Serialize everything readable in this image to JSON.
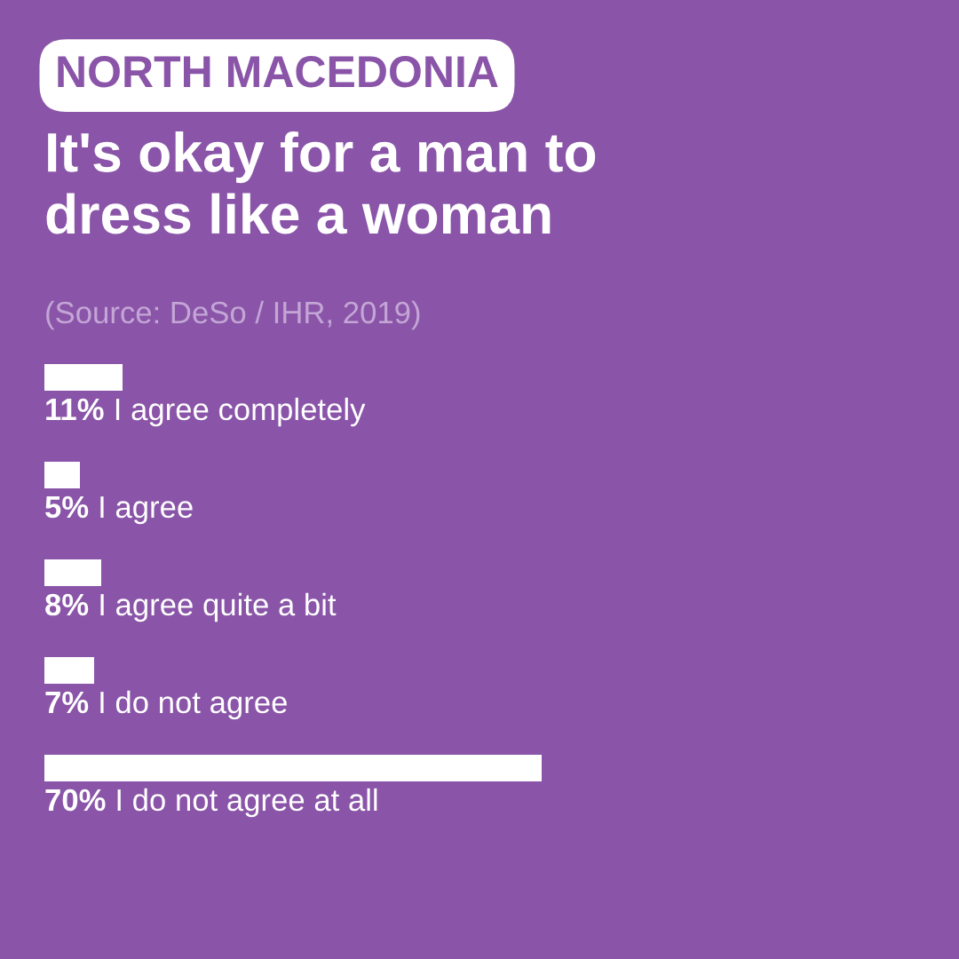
{
  "chart_data": {
    "type": "bar",
    "orientation": "horizontal",
    "title": "It's okay for a man to\ndress like a woman",
    "subtitle": "NORTH MACEDONIA",
    "annotations": [
      "(Source: DeSo / IHR, 2019)"
    ],
    "categories": [
      "I agree completely",
      "I agree",
      "I agree quite a bit",
      "I do not agree",
      "I do not agree at all"
    ],
    "values": [
      11,
      5,
      8,
      7,
      70
    ],
    "value_labels": [
      "11%",
      "5%",
      "8%",
      "7%",
      "70%"
    ],
    "color": "#ffffff",
    "tick_labels": false
  }
}
